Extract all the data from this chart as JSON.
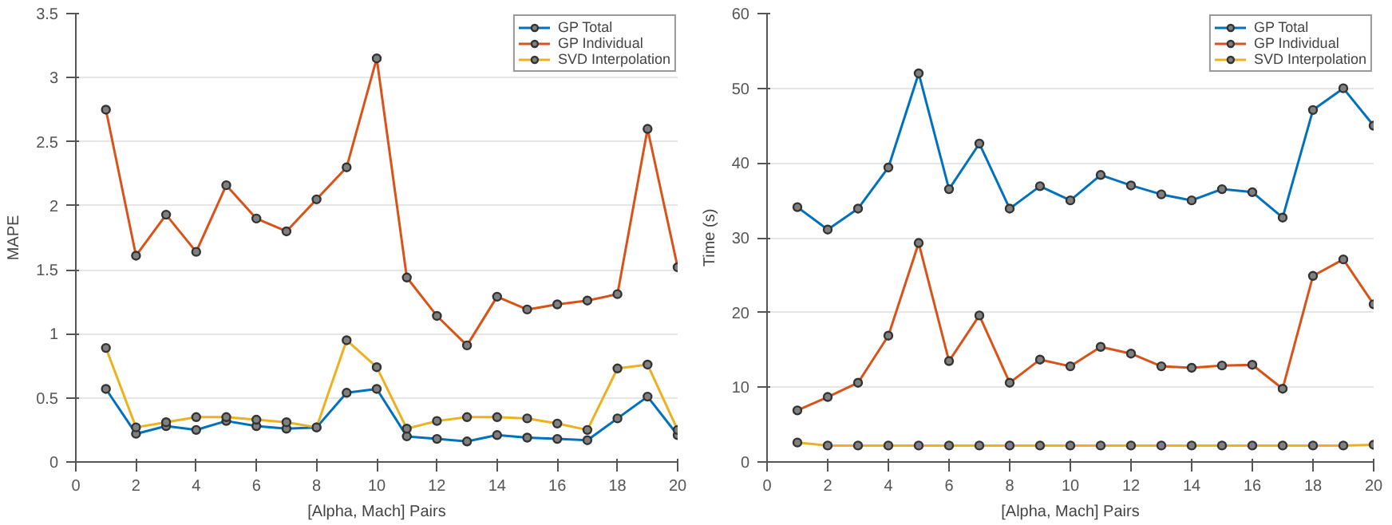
{
  "chart_data": [
    {
      "type": "line",
      "xlabel": "[Alpha, Mach] Pairs",
      "ylabel": "MAPE",
      "x": [
        1,
        2,
        3,
        4,
        5,
        6,
        7,
        8,
        9,
        10,
        11,
        12,
        13,
        14,
        15,
        16,
        17,
        18,
        19,
        20
      ],
      "xlim": [
        0,
        20
      ],
      "xticks": [
        0,
        2,
        4,
        6,
        8,
        10,
        12,
        14,
        16,
        18,
        20
      ],
      "ylim": [
        0,
        3.5
      ],
      "yticks": [
        0,
        0.5,
        1,
        1.5,
        2,
        2.5,
        3,
        3.5
      ],
      "grid": "y",
      "legend": "top right",
      "marker": "circle",
      "line_style": "solid",
      "series": [
        {
          "name": "GP Total",
          "color": "#0072bd",
          "values": [
            0.57,
            0.22,
            0.28,
            0.25,
            0.32,
            0.28,
            0.26,
            0.27,
            0.54,
            0.57,
            0.2,
            0.18,
            0.16,
            0.21,
            0.19,
            0.18,
            0.17,
            0.34,
            0.51,
            0.21
          ]
        },
        {
          "name": "GP Individual",
          "color": "#d95319",
          "values": [
            2.75,
            1.61,
            1.93,
            1.64,
            2.16,
            1.9,
            1.8,
            2.05,
            2.3,
            3.15,
            1.44,
            1.14,
            0.91,
            1.29,
            1.19,
            1.23,
            1.26,
            1.31,
            2.6,
            1.52
          ]
        },
        {
          "name": "SVD Interpolation",
          "color": "#edb120",
          "values": [
            0.89,
            0.27,
            0.31,
            0.35,
            0.35,
            0.33,
            0.31,
            0.27,
            0.95,
            0.74,
            0.26,
            0.32,
            0.35,
            0.35,
            0.34,
            0.3,
            0.25,
            0.73,
            0.76,
            0.25
          ]
        }
      ]
    },
    {
      "type": "line",
      "xlabel": "[Alpha, Mach] Pairs",
      "ylabel": "Time (s)",
      "x": [
        1,
        2,
        3,
        4,
        5,
        6,
        7,
        8,
        9,
        10,
        11,
        12,
        13,
        14,
        15,
        16,
        17,
        18,
        19,
        20
      ],
      "xlim": [
        0,
        20
      ],
      "xticks": [
        0,
        2,
        4,
        6,
        8,
        10,
        12,
        14,
        16,
        18,
        20
      ],
      "ylim": [
        0,
        60
      ],
      "yticks": [
        0,
        10,
        20,
        30,
        40,
        50,
        60
      ],
      "grid": "y",
      "legend": "top right",
      "marker": "circle",
      "line_style": "solid",
      "series": [
        {
          "name": "GP Total",
          "color": "#0072bd",
          "values": [
            34.1,
            31.1,
            33.9,
            39.4,
            52,
            36.5,
            42.6,
            33.9,
            36.9,
            35,
            38.4,
            37,
            35.8,
            35,
            36.5,
            36.1,
            32.7,
            47.1,
            50,
            45
          ]
        },
        {
          "name": "GP Individual",
          "color": "#d95319",
          "values": [
            6.9,
            8.7,
            10.6,
            16.9,
            29.3,
            13.5,
            19.6,
            10.6,
            13.7,
            12.8,
            15.4,
            14.5,
            12.8,
            12.6,
            12.9,
            13,
            9.8,
            24.9,
            27.1,
            21.1
          ]
        },
        {
          "name": "SVD Interpolation",
          "color": "#edb120",
          "values": [
            2.6,
            2.2,
            2.2,
            2.2,
            2.2,
            2.2,
            2.2,
            2.2,
            2.2,
            2.2,
            2.2,
            2.2,
            2.2,
            2.2,
            2.2,
            2.2,
            2.2,
            2.2,
            2.2,
            2.3
          ]
        }
      ]
    }
  ]
}
